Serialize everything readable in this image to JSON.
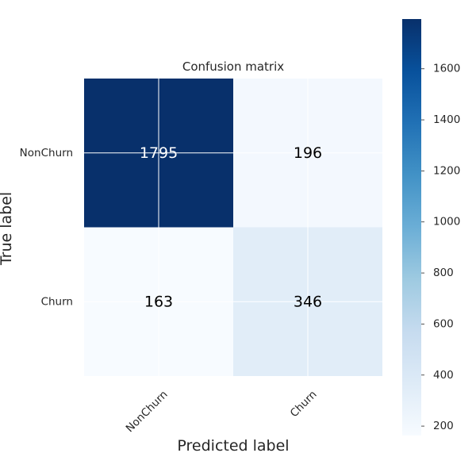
{
  "chart_data": {
    "type": "heatmap",
    "title": "Confusion matrix",
    "xlabel": "Predicted label",
    "ylabel": "True label",
    "x_categories": [
      "NonChurn",
      "Churn"
    ],
    "y_categories": [
      "NonChurn",
      "Churn"
    ],
    "matrix": [
      [
        1795,
        196
      ],
      [
        163,
        346
      ]
    ],
    "colormap": "Blues",
    "colorbar": {
      "min": 163,
      "max": 1795,
      "ticks": [
        200,
        400,
        600,
        800,
        1000,
        1200,
        1400,
        1600
      ]
    },
    "grid": true,
    "x_tick_rotation_deg": 45,
    "threshold_for_white_text": 897.5
  },
  "colors": {
    "text_dark": "#000000",
    "text_light": "#ffffff",
    "grid_line": "#ffffff",
    "label_color": "#262626"
  }
}
